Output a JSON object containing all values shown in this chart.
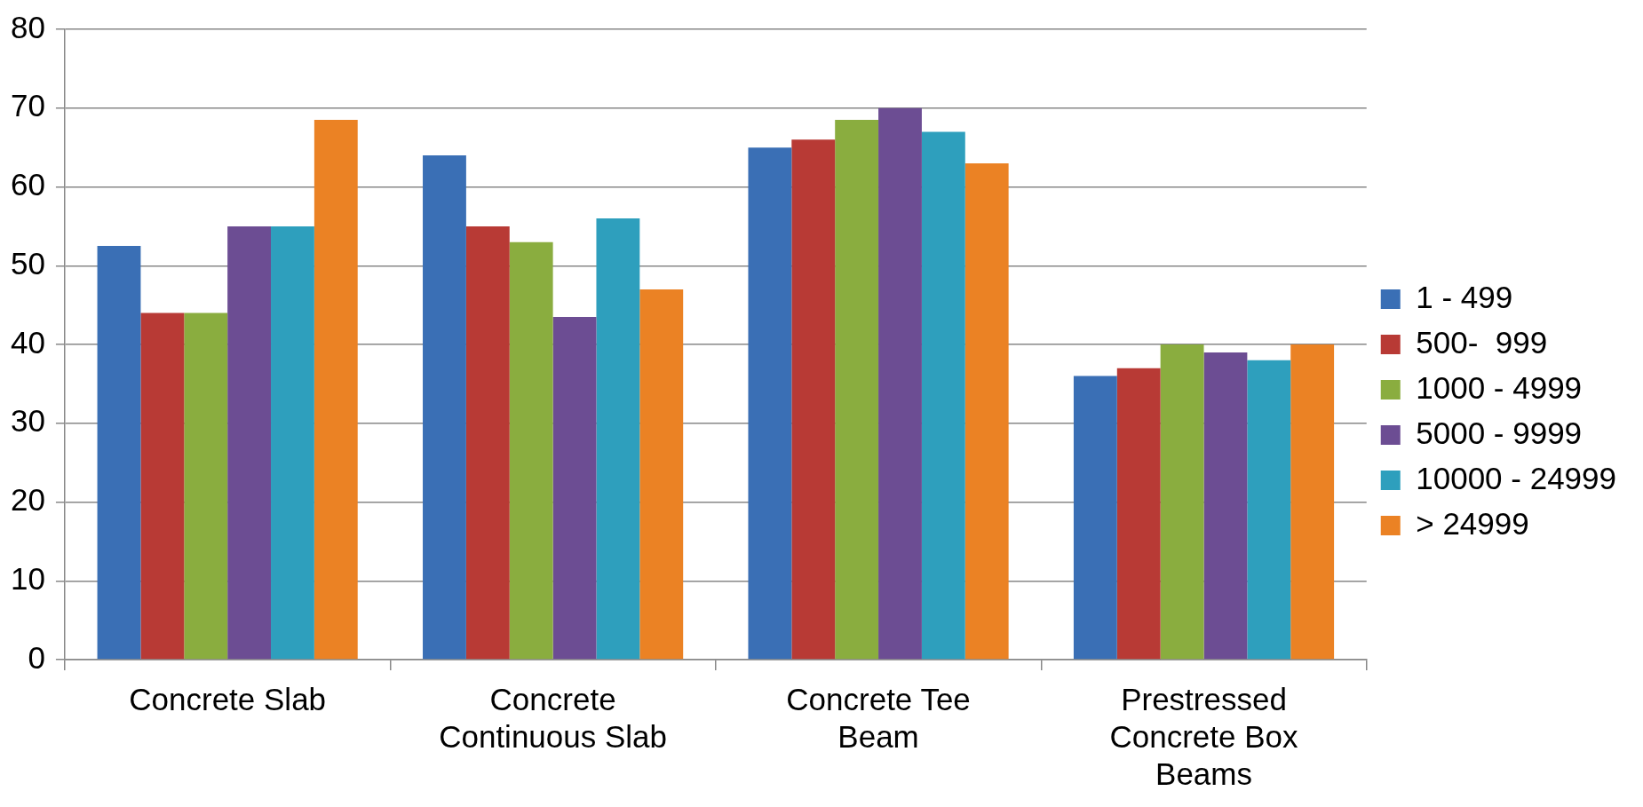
{
  "chart_data": {
    "type": "bar",
    "categories": [
      "Concrete Slab",
      "Concrete Continuous Slab",
      "Concrete Tee Beam",
      "Prestressed Concrete Box Beams"
    ],
    "series": [
      {
        "name": "1 - 499",
        "color": "#3a6fb5",
        "values": [
          52.5,
          64,
          65,
          36
        ]
      },
      {
        "name": "500-  999",
        "color": "#b83a35",
        "values": [
          44,
          55,
          66,
          37
        ]
      },
      {
        "name": "1000 - 4999",
        "color": "#8aad3f",
        "values": [
          44,
          53,
          68.5,
          40
        ]
      },
      {
        "name": "5000 - 9999",
        "color": "#6c4d93",
        "values": [
          55,
          43.5,
          70,
          39
        ]
      },
      {
        "name": "10000 - 24999",
        "color": "#2e9fbd",
        "values": [
          55,
          56,
          67,
          38
        ]
      },
      {
        "name": "> 24999",
        "color": "#eb8224",
        "values": [
          68.5,
          47,
          63,
          40
        ]
      }
    ],
    "ylim": [
      0,
      80
    ],
    "yticks": [
      0,
      10,
      20,
      30,
      40,
      50,
      60,
      70,
      80
    ],
    "grid": "y",
    "legend": "right"
  }
}
